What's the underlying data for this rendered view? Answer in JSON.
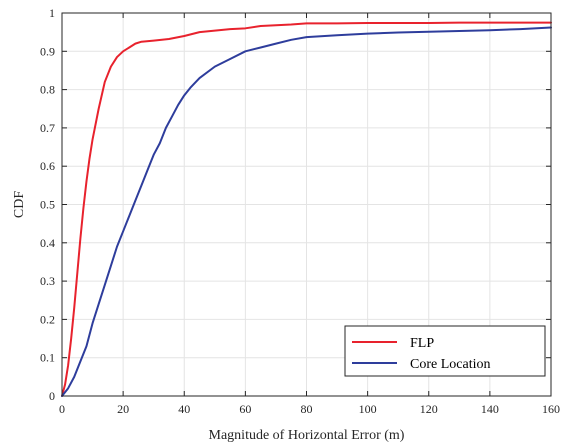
{
  "chart_data": {
    "type": "line",
    "title": "",
    "xlabel": "Magnitude of Horizontal Error (m)",
    "ylabel": "CDF",
    "xlim": [
      0,
      160
    ],
    "ylim": [
      0,
      1
    ],
    "xticks": [
      0,
      20,
      40,
      60,
      80,
      100,
      120,
      140,
      160
    ],
    "yticks": [
      0,
      0.1,
      0.2,
      0.3,
      0.4,
      0.5,
      0.6,
      0.7,
      0.8,
      0.9,
      1
    ],
    "xtick_labels": [
      "0",
      "20",
      "40",
      "60",
      "80",
      "100",
      "120",
      "140",
      "160"
    ],
    "ytick_labels": [
      "0",
      "0.1",
      "0.2",
      "0.3",
      "0.4",
      "0.5",
      "0.6",
      "0.7",
      "0.8",
      "0.9",
      "1"
    ],
    "grid": true,
    "legend_position": "bottom-right",
    "series": [
      {
        "name": "FLP",
        "color": "#e8222d",
        "x": [
          0,
          1,
          2,
          3,
          4,
          5,
          6,
          7,
          8,
          9,
          10,
          12,
          14,
          16,
          18,
          20,
          22,
          24,
          26,
          30,
          35,
          40,
          45,
          50,
          55,
          60,
          65,
          70,
          75,
          80,
          90,
          100,
          110,
          120,
          130,
          140,
          150,
          160
        ],
        "y": [
          0,
          0.03,
          0.08,
          0.15,
          0.23,
          0.32,
          0.41,
          0.49,
          0.56,
          0.62,
          0.67,
          0.75,
          0.82,
          0.86,
          0.885,
          0.9,
          0.91,
          0.92,
          0.925,
          0.928,
          0.932,
          0.94,
          0.95,
          0.954,
          0.958,
          0.96,
          0.966,
          0.968,
          0.97,
          0.973,
          0.973,
          0.974,
          0.974,
          0.974,
          0.975,
          0.975,
          0.975,
          0.975
        ]
      },
      {
        "name": "Core Location",
        "color": "#2e3d9c",
        "x": [
          0,
          2,
          4,
          6,
          8,
          10,
          12,
          14,
          16,
          18,
          20,
          22,
          24,
          26,
          28,
          30,
          32,
          34,
          36,
          38,
          40,
          42,
          45,
          50,
          55,
          60,
          65,
          70,
          75,
          80,
          90,
          100,
          110,
          120,
          130,
          140,
          150,
          160
        ],
        "y": [
          0,
          0.02,
          0.05,
          0.09,
          0.13,
          0.19,
          0.24,
          0.29,
          0.34,
          0.39,
          0.43,
          0.47,
          0.51,
          0.55,
          0.59,
          0.63,
          0.66,
          0.7,
          0.73,
          0.76,
          0.785,
          0.805,
          0.83,
          0.86,
          0.88,
          0.9,
          0.91,
          0.92,
          0.93,
          0.937,
          0.942,
          0.946,
          0.949,
          0.951,
          0.953,
          0.955,
          0.958,
          0.962
        ]
      }
    ]
  }
}
